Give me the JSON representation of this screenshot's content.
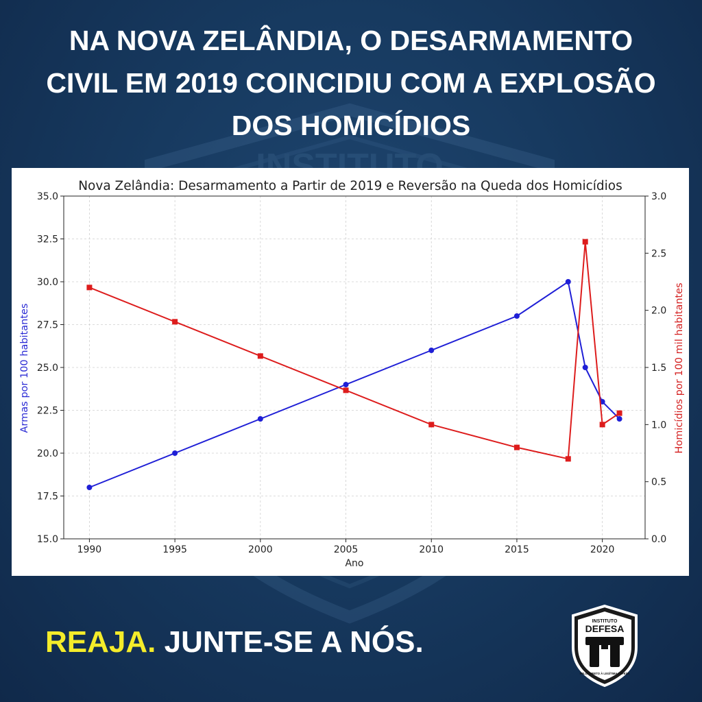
{
  "headline": {
    "line1": "NA NOVA ZELÂNDIA, O DESARMAMENTO",
    "line2": "CIVIL EM 2019 COINCIDIU COM A EXPLOSÃO",
    "line3": "DOS HOMICÍDIOS"
  },
  "footer": {
    "accent_text": "REAJA.",
    "rest_text": " JUNTE-SE A NÓS."
  },
  "logo": {
    "top_text": "INSTITUTO",
    "name": "DEFESA",
    "motto": "PELO DIREITO À LEGÍTIMA DEFESA"
  },
  "background": {
    "watermark": "INSTITUTO"
  },
  "colors": {
    "background": "#173a60",
    "accent": "#f4ec2a",
    "series_left": "#1f1fd6",
    "series_right": "#dd1c1c"
  },
  "chart_data": {
    "type": "line",
    "title": "Nova Zelândia: Desarmamento a Partir de 2019 e Reversão na Queda dos Homicídios",
    "xlabel": "Ano",
    "ylabel_left": "Armas por 100 habitantes",
    "ylabel_right": "Homicídios por 100 mil habitantes",
    "xlim": [
      1988.5,
      2022.5
    ],
    "ylim_left": [
      15,
      35
    ],
    "ylim_right": [
      0,
      3
    ],
    "x_ticks": [
      1990,
      1995,
      2000,
      2005,
      2010,
      2015,
      2020
    ],
    "y_ticks_left": [
      "15.0",
      "17.5",
      "20.0",
      "22.5",
      "25.0",
      "27.5",
      "30.0",
      "32.5",
      "35.0"
    ],
    "y_ticks_right": [
      "0.0",
      "0.5",
      "1.0",
      "1.5",
      "2.0",
      "2.5",
      "3.0"
    ],
    "grid": true,
    "series": [
      {
        "axis": "left",
        "marker": "circle",
        "color": "#1f1fd6",
        "x": [
          1990,
          1995,
          2000,
          2005,
          2010,
          2015,
          2018,
          2019,
          2020,
          2021
        ],
        "values": [
          18,
          20,
          22,
          24,
          26,
          28,
          30,
          25,
          23,
          22
        ]
      },
      {
        "axis": "right",
        "marker": "square",
        "color": "#dd1c1c",
        "x": [
          1990,
          1995,
          2000,
          2005,
          2010,
          2015,
          2018,
          2019,
          2020,
          2021
        ],
        "values": [
          2.2,
          1.9,
          1.6,
          1.3,
          1.0,
          0.8,
          0.7,
          2.6,
          1.0,
          1.1
        ]
      }
    ]
  }
}
